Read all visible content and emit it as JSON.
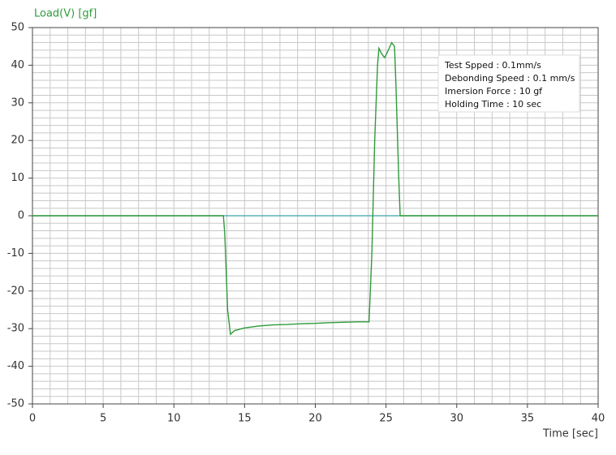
{
  "chart_data": {
    "type": "line",
    "y_label": "Load(V) [gf]",
    "x_label": "Time [sec]",
    "annotations": [
      "Test Spped : 0.1mm/s",
      "Debonding Speed : 0.1 mm/s",
      "Imersion Force : 10 gf",
      "Holding Time : 10 sec"
    ],
    "xlim": [
      0,
      40
    ],
    "ylim": [
      -50,
      50
    ],
    "xticks": [
      0,
      5,
      10,
      15,
      20,
      25,
      30,
      35,
      40
    ],
    "yticks": [
      -50,
      -40,
      -30,
      -20,
      -10,
      0,
      10,
      20,
      30,
      40,
      50
    ],
    "x_minor_grid": [
      0,
      1.25,
      2.5,
      3.75,
      5,
      6.25,
      7.5,
      8.75,
      10,
      11.25,
      12.5,
      13.75,
      15,
      16.25,
      17.5,
      18.75,
      20,
      21.25,
      22.5,
      23.75,
      25,
      26.25,
      27.5,
      28.75,
      30,
      31.25,
      32.5,
      33.75,
      35,
      36.25,
      37.5,
      38.75,
      40
    ],
    "y_minor_grid": [
      -50,
      -48,
      -46,
      -44,
      -42,
      -40,
      -38,
      -36,
      -34,
      -32,
      -30,
      -28,
      -26,
      -24,
      -22,
      -20,
      -18,
      -16,
      -14,
      -12,
      -10,
      -8,
      -6,
      -4,
      -2,
      0,
      2,
      4,
      6,
      8,
      10,
      12,
      14,
      16,
      18,
      20,
      22,
      24,
      26,
      28,
      30,
      32,
      34,
      36,
      38,
      40,
      42,
      44,
      46,
      48,
      50
    ],
    "grid": true,
    "grid_color": "#c8c8c8",
    "zero_line_color": "#3aa5a5",
    "label_color": "#2e9b3a",
    "x": [
      0,
      13.5,
      13.6,
      13.8,
      14.0,
      14.3,
      15,
      16,
      17,
      18,
      19,
      20,
      21,
      22,
      23,
      23.8,
      24.0,
      24.2,
      24.4,
      24.5,
      24.7,
      24.9,
      25.1,
      25.4,
      25.6,
      25.7,
      25.9,
      26.0,
      26.1,
      40
    ],
    "series": [
      {
        "color": "#2e9b3a",
        "values": [
          0,
          0,
          -5,
          -25,
          -31.5,
          -30.5,
          -29.8,
          -29.3,
          -29,
          -28.9,
          -28.7,
          -28.6,
          -28.4,
          -28.3,
          -28.2,
          -28.2,
          -10,
          20,
          40,
          44.5,
          43,
          42,
          43.5,
          46,
          45,
          35,
          10,
          0,
          0,
          0
        ]
      }
    ]
  }
}
